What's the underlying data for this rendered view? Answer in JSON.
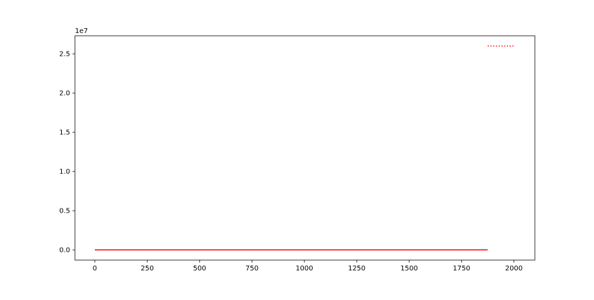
{
  "chart_data": {
    "type": "line",
    "title": "",
    "xlabel": "",
    "ylabel": "",
    "xlim": [
      -95,
      2100
    ],
    "ylim": [
      -1300000,
      27300000
    ],
    "x_ticks": [
      0,
      250,
      500,
      750,
      1000,
      1250,
      1500,
      1750,
      2000
    ],
    "x_tick_labels": [
      "0",
      "250",
      "500",
      "750",
      "1000",
      "1250",
      "1500",
      "1750",
      "2000"
    ],
    "y_ticks": [
      0,
      5000000,
      10000000,
      15000000,
      20000000,
      25000000
    ],
    "y_tick_labels": [
      "0.0",
      "0.5",
      "1.0",
      "1.5",
      "2.0",
      "2.5"
    ],
    "y_offset_label": "1e7",
    "grid": false,
    "legend": "none",
    "series": [
      {
        "color": "#ff0000",
        "style": "solid",
        "x": [
          0,
          1875
        ],
        "y": [
          0,
          0
        ]
      },
      {
        "color": "#ff0000",
        "style": "dotted",
        "x": [
          1875,
          2000
        ],
        "y": [
          26000000,
          26000000
        ]
      }
    ]
  }
}
